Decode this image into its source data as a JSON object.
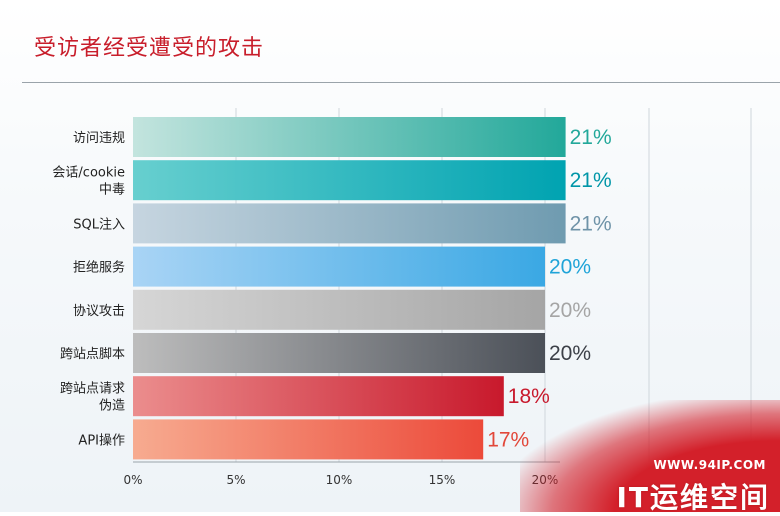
{
  "title": "受访者经受遭受的攻击",
  "chart_data": {
    "type": "bar",
    "orientation": "horizontal",
    "categories": [
      "访问违规",
      "会话/cookie中毒",
      "SQL注入",
      "拒绝服务",
      "协议攻击",
      "跨站点脚本",
      "跨站点请求伪造",
      "API操作"
    ],
    "category_lines": [
      [
        "访问违规"
      ],
      [
        "会话/cookie",
        "中毒"
      ],
      [
        "SQL注入"
      ],
      [
        "拒绝服务"
      ],
      [
        "协议攻击"
      ],
      [
        "跨站点脚本"
      ],
      [
        "跨站点请求",
        "伪造"
      ],
      [
        "API操作"
      ]
    ],
    "values": [
      21,
      21,
      21,
      20,
      20,
      20,
      18,
      17
    ],
    "value_labels": [
      "21%",
      "21%",
      "21%",
      "20%",
      "20%",
      "20%",
      "18%",
      "17%"
    ],
    "xlim": [
      0,
      25
    ],
    "xticks": [
      "0%",
      "5%",
      "10%",
      "15%",
      "20%"
    ],
    "colors": [
      {
        "from": "#c3e4de",
        "to": "#22a89a",
        "label": "#22a89a"
      },
      {
        "from": "#67cfcf",
        "to": "#00a3b1",
        "label": "#0096a8"
      },
      {
        "from": "#c6d5e0",
        "to": "#6f9bb0",
        "label": "#6f93a8"
      },
      {
        "from": "#a9d4f5",
        "to": "#3aa8e4",
        "label": "#1fa4d8"
      },
      {
        "from": "#d6d6d6",
        "to": "#a5a5a5",
        "label": "#a5a5a5"
      },
      {
        "from": "#bdbdbd",
        "to": "#4b5058",
        "label": "#3c4048"
      },
      {
        "from": "#eb8d8d",
        "to": "#c8192c",
        "label": "#c8192c"
      },
      {
        "from": "#f7ab90",
        "to": "#ec4a3a",
        "label": "#e2473a"
      }
    ]
  },
  "watermark": {
    "url": "WWW.94IP.COM",
    "name": "IT运维空间"
  }
}
